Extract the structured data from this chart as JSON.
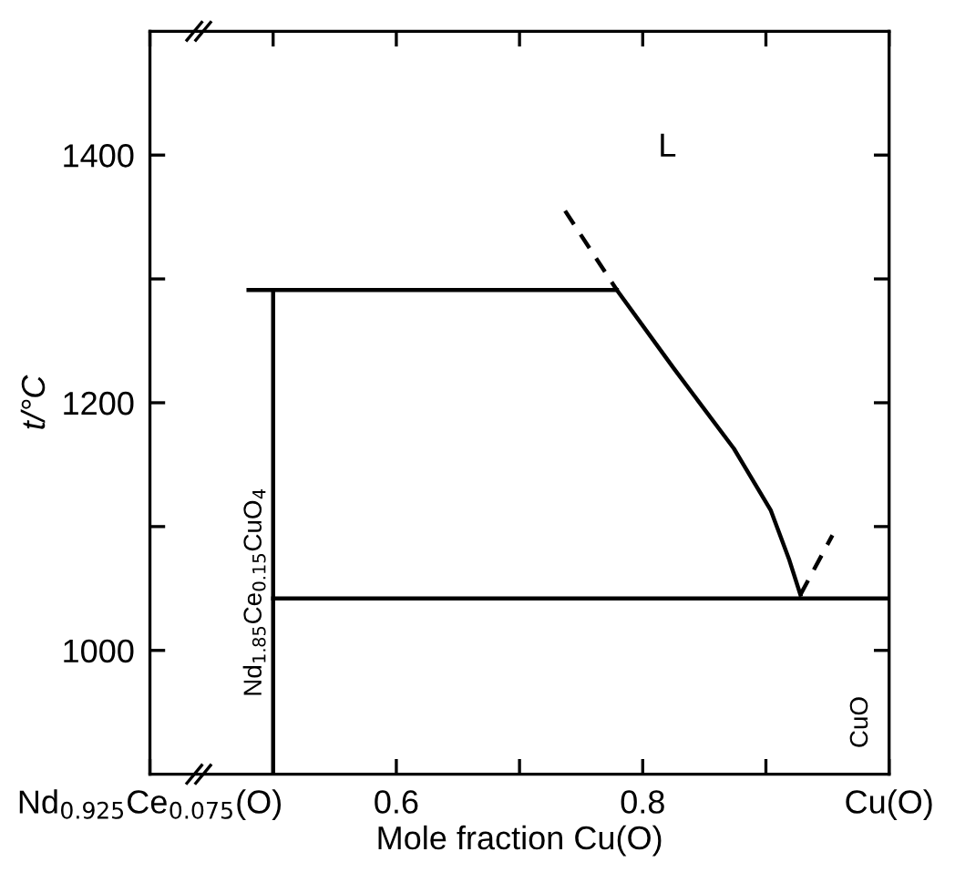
{
  "chart_data": {
    "type": "line",
    "xlabel": "Mole fraction Cu(O)",
    "ylabel": "t/°C",
    "xlim": [
      0.4,
      1.0
    ],
    "ylim": [
      900,
      1500
    ],
    "xticks": [
      {
        "value": 0.4,
        "label": "Nd$_{0.925}$Ce$_{0.075}$(O)"
      },
      {
        "value": 0.5,
        "label": null
      },
      0.6,
      {
        "value": 0.7,
        "label": null
      },
      0.8,
      {
        "value": 0.9,
        "label": null
      },
      {
        "value": 1.0,
        "label": "Cu(O)"
      }
    ],
    "yticks": [
      1000,
      {
        "value": 1100,
        "label": null
      },
      1200,
      {
        "value": 1300,
        "label": null
      },
      1400
    ],
    "grid": false,
    "legend": false,
    "marker": "none",
    "series": [
      {
        "color": "#000000",
        "line_style": "solid",
        "x": [
          0.5,
          0.5
        ],
        "values": [
          900,
          1291
        ]
      },
      {
        "color": "#000000",
        "line_style": "solid",
        "x": [
          0.48,
          0.779
        ],
        "values": [
          1291,
          1291
        ]
      },
      {
        "color": "#000000",
        "line_style": "solid",
        "x": [
          0.779,
          0.825,
          0.874,
          0.904,
          0.919,
          0.928
        ],
        "values": [
          1291,
          1228,
          1163,
          1113,
          1073,
          1045
        ]
      },
      {
        "color": "#000000",
        "line_style": "dashed",
        "x": [
          0.737,
          0.779
        ],
        "values": [
          1355,
          1291
        ]
      },
      {
        "color": "#000000",
        "line_style": "dashed",
        "x": [
          0.928,
          0.954
        ],
        "values": [
          1045,
          1093
        ]
      },
      {
        "color": "#000000",
        "line_style": "solid",
        "x": [
          0.5,
          1.0
        ],
        "values": [
          1042,
          1042
        ]
      }
    ],
    "annotations": [
      "L",
      "Nd$_{1.85}$Ce$_{0.15}$CuO$_{4}$",
      "CuO"
    ]
  }
}
